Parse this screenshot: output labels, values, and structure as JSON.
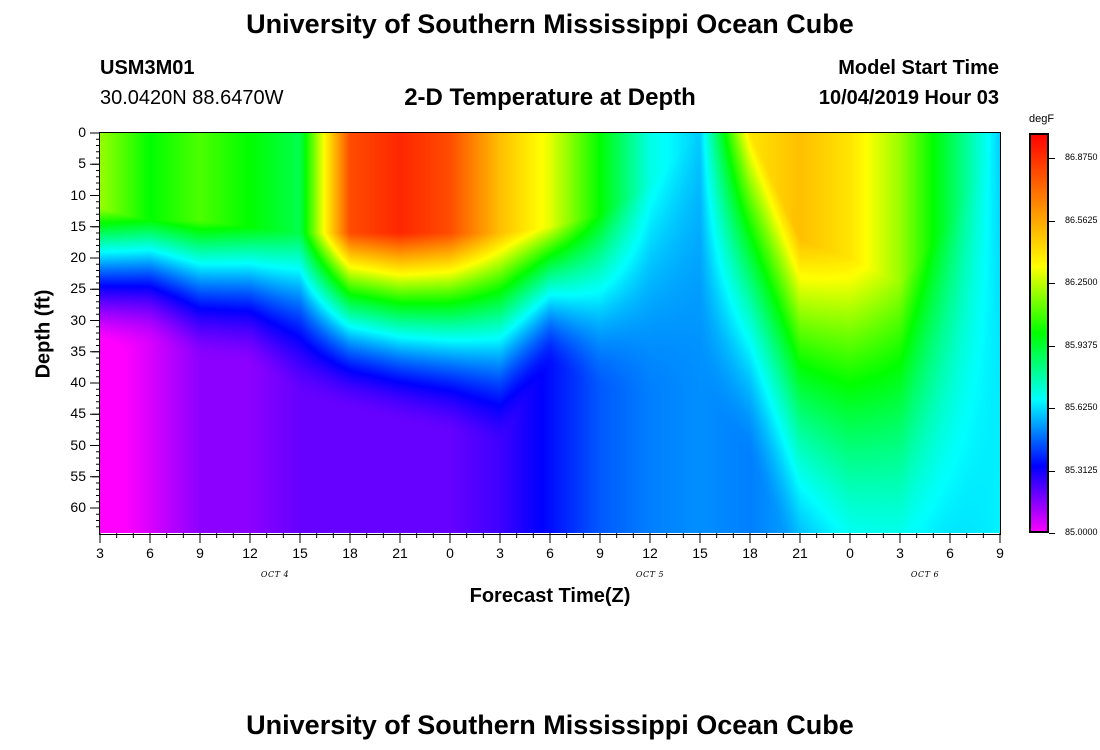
{
  "header": {
    "title": "University of Southern Mississippi Ocean Cube",
    "station_id": "USM3M01",
    "coordinates": "30.0420N 88.6470W",
    "plot_title": "2-D Temperature at Depth",
    "model_label": "Model Start Time",
    "model_time": "10/04/2019 Hour 03"
  },
  "footer": {
    "title": "University of Southern Mississippi Ocean Cube"
  },
  "chart_data": {
    "type": "heatmap",
    "title": "2-D Temperature at Depth",
    "xlabel": "Forecast Time(Z)",
    "ylabel": "Depth (ft)",
    "units": "degF",
    "x_tick_labels": [
      "3",
      "6",
      "9",
      "12",
      "15",
      "18",
      "21",
      "0",
      "3",
      "6",
      "9",
      "12",
      "15",
      "18",
      "21",
      "0",
      "3",
      "6",
      "9"
    ],
    "x_hours_from_start": [
      0,
      3,
      6,
      9,
      12,
      15,
      18,
      21,
      24,
      27,
      30,
      33,
      36,
      39,
      42,
      45,
      48,
      51,
      54
    ],
    "x_range_hours": [
      0,
      54
    ],
    "date_labels": [
      {
        "text": "OCT 4",
        "hour": 10.5
      },
      {
        "text": "OCT 5",
        "hour": 33
      },
      {
        "text": "OCT 6",
        "hour": 49.5
      }
    ],
    "y_ticks": [
      0,
      5,
      10,
      15,
      20,
      25,
      30,
      35,
      40,
      45,
      50,
      55,
      60
    ],
    "y_range": [
      0,
      64
    ],
    "y_inverted": true,
    "colorbar": {
      "range": [
        85.0,
        87.0
      ],
      "tick_values": [
        85.0,
        85.3125,
        85.625,
        85.9375,
        86.25,
        86.5625,
        86.875
      ],
      "tick_labels": [
        "85.0000",
        "85.3125",
        "85.6250",
        "85.9375",
        "86.2500",
        "86.5625",
        "86.8750"
      ],
      "colors": [
        "#ff00ff",
        "#0000ff",
        "#00ffff",
        "#00ff00",
        "#ffff00",
        "#ff8000",
        "#ff0000"
      ]
    },
    "surface_layer_top_degF": [
      86.2,
      86.0,
      86.1,
      86.0,
      85.9,
      86.8,
      86.9,
      86.8,
      86.5,
      86.3,
      86.0,
      85.7,
      85.6,
      86.4,
      86.5,
      86.4,
      86.2,
      85.9,
      85.6
    ],
    "mixed_layer_depth_ft": [
      12,
      14,
      14,
      15,
      16,
      16,
      16,
      16,
      16,
      15,
      13,
      8,
      0,
      0,
      17,
      20,
      24,
      14,
      0
    ],
    "bottom_degF": [
      84.95,
      85.05,
      85.15,
      85.15,
      85.2,
      85.2,
      85.2,
      85.2,
      85.25,
      85.35,
      85.45,
      85.5,
      85.52,
      85.5,
      85.55,
      85.6,
      85.6,
      85.62,
      85.65
    ],
    "thermocline_width_ft": [
      24,
      20,
      22,
      22,
      26,
      28,
      30,
      32,
      34,
      22,
      28,
      34,
      42,
      52,
      54,
      58,
      58,
      60,
      64
    ]
  }
}
